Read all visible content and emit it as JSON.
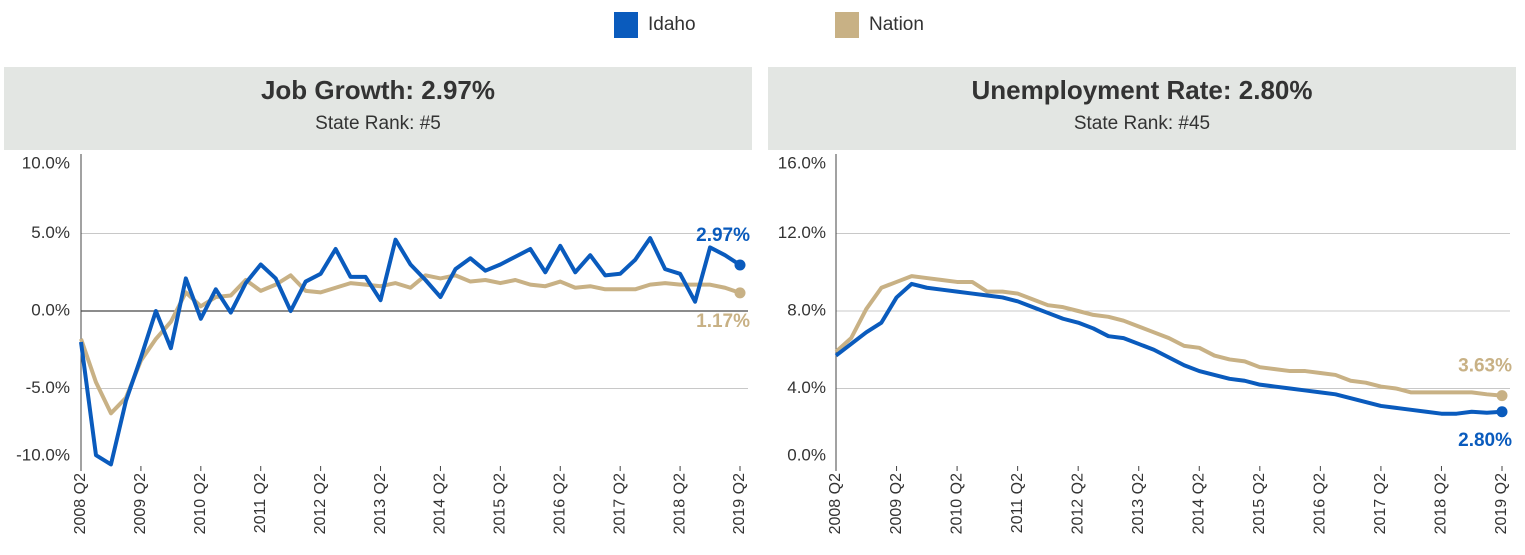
{
  "chart_data": [
    {
      "type": "line",
      "title": "Job Growth: 2.97%",
      "subtitle": "State Rank: #5",
      "categories": [
        "2008 Q2",
        null,
        null,
        null,
        "2009 Q2",
        null,
        null,
        null,
        "2010 Q2",
        null,
        null,
        null,
        "2011 Q2",
        null,
        null,
        null,
        "2012 Q2",
        null,
        null,
        null,
        "2013 Q2",
        null,
        null,
        null,
        "2014 Q2",
        null,
        null,
        null,
        "2015 Q2",
        null,
        null,
        null,
        "2016 Q2",
        null,
        null,
        null,
        "2017 Q2",
        null,
        null,
        null,
        "2018 Q2",
        null,
        null,
        null,
        "2019 Q2"
      ],
      "series": [
        {
          "name": "Idaho",
          "color": "#0a5bbd",
          "values": [
            -2,
            -9.3,
            -9.9,
            -5.8,
            -3,
            0,
            -2.4,
            2.1,
            -0.5,
            1.4,
            -0.1,
            1.8,
            3,
            2.1,
            0,
            1.9,
            2.4,
            4,
            2.2,
            2.2,
            0.7,
            4.6,
            3,
            2,
            0.9,
            2.7,
            3.4,
            2.6,
            3,
            3.5,
            4,
            2.5,
            4.2,
            2.5,
            3.6,
            2.3,
            2.4,
            3.3,
            4.7,
            2.7,
            2.4,
            0.6,
            4.1,
            3.6,
            2.97
          ],
          "value_labels": [
            null,
            null,
            null,
            null,
            null,
            null,
            null,
            null,
            null,
            null,
            null,
            null,
            null,
            null,
            null,
            null,
            null,
            null,
            null,
            null,
            null,
            null,
            null,
            null,
            null,
            null,
            null,
            null,
            null,
            null,
            null,
            null,
            null,
            null,
            null,
            null,
            null,
            null,
            null,
            null,
            null,
            null,
            null,
            null,
            "2.97%"
          ]
        },
        {
          "name": "Nation",
          "color": "#c8b185",
          "values": [
            -1.8,
            -4.6,
            -6.6,
            -5.6,
            -3.2,
            -1.8,
            -0.7,
            1.2,
            0.3,
            0.9,
            1.0,
            2.0,
            1.3,
            1.7,
            2.3,
            1.3,
            1.2,
            1.5,
            1.8,
            1.7,
            1.6,
            1.8,
            1.5,
            2.3,
            2.1,
            2.3,
            1.9,
            2.0,
            1.8,
            2.0,
            1.7,
            1.6,
            1.9,
            1.5,
            1.6,
            1.4,
            1.4,
            1.4,
            1.7,
            1.8,
            1.7,
            1.7,
            1.7,
            1.5,
            1.17
          ],
          "value_labels": [
            null,
            null,
            null,
            null,
            null,
            null,
            null,
            null,
            null,
            null,
            null,
            null,
            null,
            null,
            null,
            null,
            null,
            null,
            null,
            null,
            null,
            null,
            null,
            null,
            null,
            null,
            null,
            null,
            null,
            null,
            null,
            null,
            null,
            null,
            null,
            null,
            null,
            null,
            null,
            null,
            null,
            null,
            null,
            null,
            "1.17%"
          ]
        }
      ],
      "ylim": [
        -10,
        10
      ],
      "yticks": [
        {
          "value": -10,
          "label": "-10.0%"
        },
        {
          "value": -5,
          "label": "-5.0%"
        },
        {
          "value": 0,
          "label": "0.0%"
        },
        {
          "value": 5,
          "label": "5.0%"
        },
        {
          "value": 10,
          "label": "10.0%"
        }
      ],
      "grid": true
    },
    {
      "type": "line",
      "title": "Unemployment Rate: 2.80%",
      "subtitle": "State Rank: #45",
      "categories": [
        "2008 Q2",
        null,
        null,
        null,
        "2009 Q2",
        null,
        null,
        null,
        "2010 Q2",
        null,
        null,
        null,
        "2011 Q2",
        null,
        null,
        null,
        "2012 Q2",
        null,
        null,
        null,
        "2013 Q2",
        null,
        null,
        null,
        "2014 Q2",
        null,
        null,
        null,
        "2015 Q2",
        null,
        null,
        null,
        "2016 Q2",
        null,
        null,
        null,
        "2017 Q2",
        null,
        null,
        null,
        "2018 Q2",
        null,
        null,
        null,
        "2019 Q2"
      ],
      "series": [
        {
          "name": "Idaho",
          "color": "#0a5bbd",
          "values": [
            5.7,
            6.3,
            6.9,
            7.4,
            8.7,
            9.4,
            9.2,
            9.1,
            9.0,
            8.9,
            8.8,
            8.7,
            8.5,
            8.2,
            7.9,
            7.6,
            7.4,
            7.1,
            6.7,
            6.6,
            6.3,
            6.0,
            5.6,
            5.2,
            4.9,
            4.7,
            4.5,
            4.4,
            4.2,
            4.1,
            4.0,
            3.9,
            3.8,
            3.7,
            3.5,
            3.3,
            3.1,
            3.0,
            2.9,
            2.8,
            2.7,
            2.7,
            2.8,
            2.75,
            2.8
          ],
          "value_labels": [
            null,
            null,
            null,
            null,
            null,
            null,
            null,
            null,
            null,
            null,
            null,
            null,
            null,
            null,
            null,
            null,
            null,
            null,
            null,
            null,
            null,
            null,
            null,
            null,
            null,
            null,
            null,
            null,
            null,
            null,
            null,
            null,
            null,
            null,
            null,
            null,
            null,
            null,
            null,
            null,
            null,
            null,
            null,
            null,
            "2.80%"
          ]
        },
        {
          "name": "Nation",
          "color": "#c8b185",
          "values": [
            5.9,
            6.6,
            8.1,
            9.2,
            9.5,
            9.8,
            9.7,
            9.6,
            9.5,
            9.5,
            9.0,
            9.0,
            8.9,
            8.6,
            8.3,
            8.2,
            8.0,
            7.8,
            7.7,
            7.5,
            7.2,
            6.9,
            6.6,
            6.2,
            6.1,
            5.7,
            5.5,
            5.4,
            5.1,
            5.0,
            4.9,
            4.9,
            4.8,
            4.7,
            4.4,
            4.3,
            4.1,
            4.0,
            3.8,
            3.8,
            3.8,
            3.8,
            3.8,
            3.7,
            3.63
          ],
          "value_labels": [
            null,
            null,
            null,
            null,
            null,
            null,
            null,
            null,
            null,
            null,
            null,
            null,
            null,
            null,
            null,
            null,
            null,
            null,
            null,
            null,
            null,
            null,
            null,
            null,
            null,
            null,
            null,
            null,
            null,
            null,
            null,
            null,
            null,
            null,
            null,
            null,
            null,
            null,
            null,
            null,
            null,
            null,
            null,
            null,
            "3.63%"
          ]
        }
      ],
      "ylim": [
        0,
        16
      ],
      "yticks": [
        {
          "value": 0,
          "label": "0.0%"
        },
        {
          "value": 4,
          "label": "4.0%"
        },
        {
          "value": 8,
          "label": "8.0%"
        },
        {
          "value": 12,
          "label": "12.0%"
        },
        {
          "value": 16,
          "label": "16.0%"
        }
      ],
      "grid": true
    }
  ]
}
